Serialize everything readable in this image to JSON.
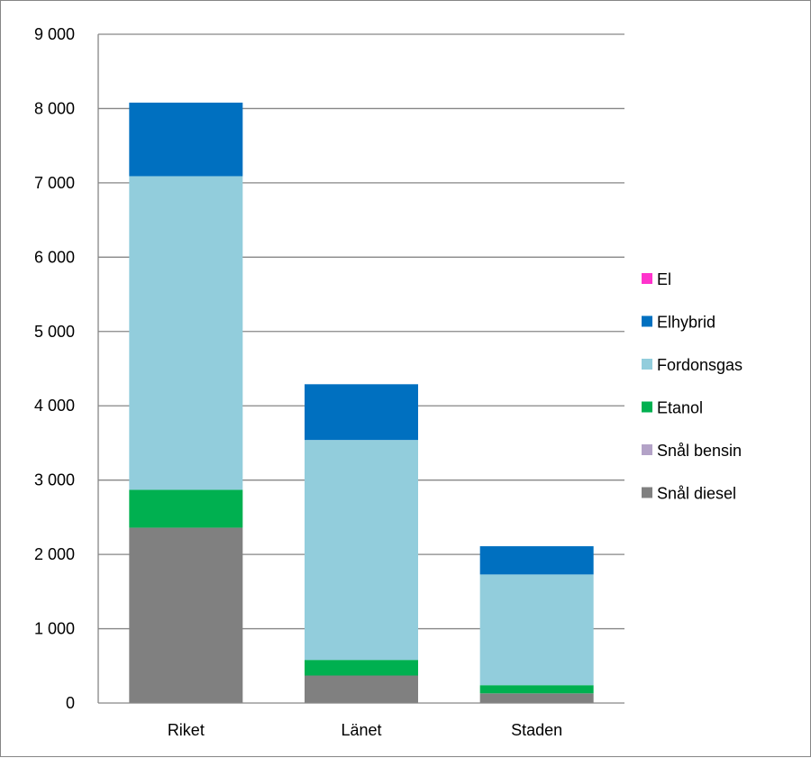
{
  "chart_data": {
    "type": "bar",
    "stacked": true,
    "categories": [
      "Riket",
      "Länet",
      "Staden"
    ],
    "ylim": [
      0,
      9000
    ],
    "yticks": [
      0,
      1000,
      2000,
      3000,
      4000,
      5000,
      6000,
      7000,
      8000,
      9000
    ],
    "ytick_labels": [
      "0",
      "1 000",
      "2 000",
      "3 000",
      "4 000",
      "5 000",
      "6 000",
      "7 000",
      "8 000",
      "9 000"
    ],
    "grid": true,
    "legend_position": "right",
    "series": [
      {
        "name": "Snål diesel",
        "color": "#808080",
        "values": [
          2360,
          370,
          130
        ]
      },
      {
        "name": "Snål bensin",
        "color": "#b3a2c7",
        "values": [
          0,
          0,
          0
        ]
      },
      {
        "name": "Etanol",
        "color": "#00b050",
        "values": [
          510,
          210,
          110
        ]
      },
      {
        "name": "Fordonsgas",
        "color": "#92cddc",
        "values": [
          4220,
          2960,
          1490
        ]
      },
      {
        "name": "Elhybrid",
        "color": "#0070c0",
        "values": [
          990,
          750,
          380
        ]
      },
      {
        "name": "El",
        "color": "#ff33cc",
        "values": [
          0,
          0,
          0
        ]
      }
    ],
    "legend_order": [
      "El",
      "Elhybrid",
      "Fordonsgas",
      "Etanol",
      "Snål bensin",
      "Snål diesel"
    ]
  }
}
